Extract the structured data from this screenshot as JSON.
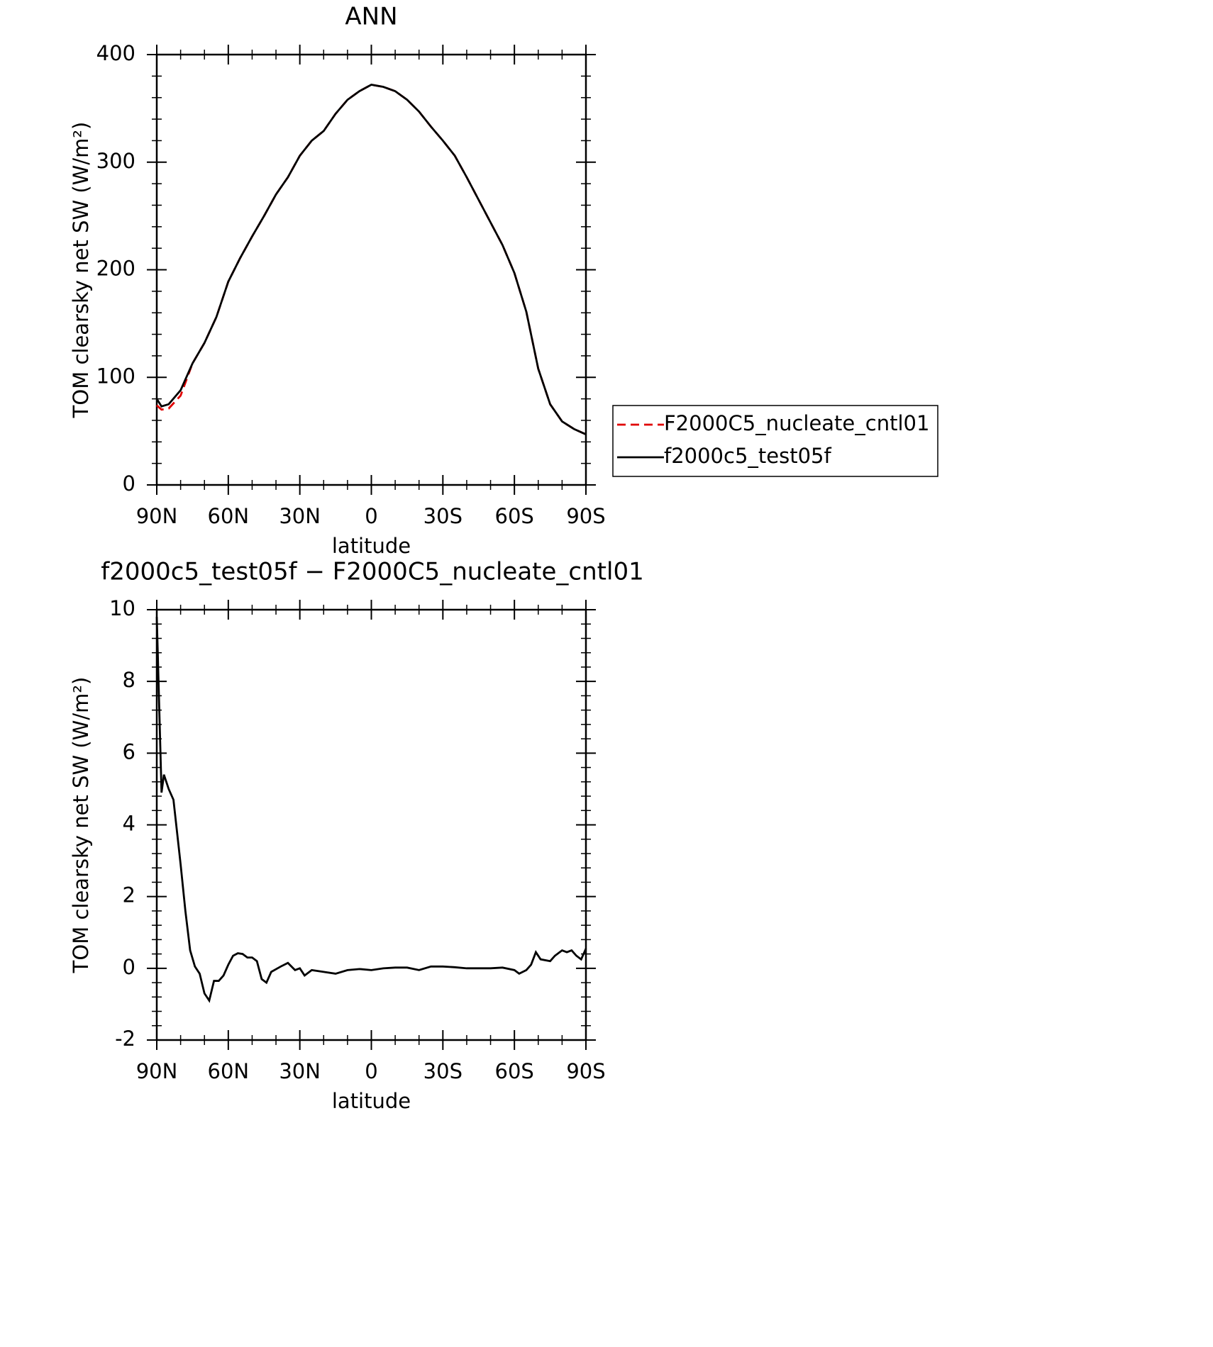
{
  "chart_data": [
    {
      "type": "line",
      "title": "ANN",
      "xlabel": "latitude",
      "ylabel": "TOM clearsky net SW (W/m²)",
      "x": [
        90,
        88,
        85,
        80,
        75,
        70,
        65,
        60,
        55,
        50,
        45,
        40,
        35,
        30,
        25,
        20,
        15,
        10,
        5,
        0,
        -5,
        -10,
        -15,
        -20,
        -25,
        -30,
        -35,
        -40,
        -45,
        -50,
        -55,
        -60,
        -65,
        -70,
        -75,
        -80,
        -85,
        -90
      ],
      "series": [
        {
          "name": "F2000C5_nucleate_cntl01",
          "color": "#e00000",
          "linestyle": "dashed",
          "values": [
            74,
            70,
            71,
            83,
            113,
            132,
            156,
            189,
            211,
            231,
            250,
            270,
            286,
            306,
            320,
            329,
            345,
            358,
            366,
            372,
            370,
            366,
            358,
            347,
            333,
            320,
            306,
            286,
            265,
            244,
            223,
            197,
            161,
            108,
            75,
            59,
            52,
            47
          ]
        },
        {
          "name": "f2000c5_test05f",
          "color": "#000000",
          "linestyle": "solid",
          "values": [
            80,
            73,
            75,
            88,
            113,
            132,
            156,
            189,
            211,
            231,
            250,
            270,
            286,
            306,
            320,
            329,
            345,
            358,
            366,
            372,
            370,
            366,
            358,
            347,
            333,
            320,
            306,
            286,
            265,
            244,
            223,
            197,
            161,
            108,
            75,
            59,
            52,
            47
          ]
        }
      ],
      "xlim": [
        90,
        -90
      ],
      "ylim": [
        0,
        400
      ],
      "xticks": [
        {
          "value": 90,
          "label": "90N"
        },
        {
          "value": 60,
          "label": "60N"
        },
        {
          "value": 30,
          "label": "30N"
        },
        0,
        {
          "value": -30,
          "label": "30S"
        },
        {
          "value": -60,
          "label": "60S"
        },
        {
          "value": -90,
          "label": "90S"
        }
      ],
      "yticks": [
        0,
        100,
        200,
        300,
        400
      ],
      "legend": "right"
    },
    {
      "type": "line",
      "title": "f2000c5_test05f − F2000C5_nucleate_cntl01",
      "xlabel": "latitude",
      "ylabel": "TOM clearsky net SW (W/m²)",
      "x": [
        90,
        88,
        87,
        85,
        83,
        80,
        78,
        76,
        74,
        72,
        70,
        68,
        66,
        64,
        62,
        60,
        58,
        56,
        54,
        52,
        50,
        48,
        46,
        44,
        42,
        38,
        35,
        32,
        30,
        28,
        25,
        20,
        15,
        10,
        5,
        0,
        -5,
        -10,
        -15,
        -20,
        -25,
        -30,
        -35,
        -40,
        -45,
        -50,
        -55,
        -60,
        -62,
        -65,
        -67,
        -69,
        -71,
        -75,
        -77,
        -80,
        -82,
        -84,
        -86,
        -88,
        -90
      ],
      "series": [
        {
          "color": "#000000",
          "linestyle": "solid",
          "values": [
            9.8,
            4.9,
            5.4,
            5.0,
            4.7,
            2.9,
            1.6,
            0.5,
            0.05,
            -0.15,
            -0.7,
            -0.9,
            -0.35,
            -0.35,
            -0.2,
            0.1,
            0.35,
            0.42,
            0.4,
            0.3,
            0.3,
            0.2,
            -0.3,
            -0.4,
            -0.1,
            0.05,
            0.15,
            -0.05,
            0.0,
            -0.2,
            -0.05,
            -0.1,
            -0.15,
            -0.05,
            -0.02,
            -0.05,
            0.0,
            0.02,
            0.02,
            -0.05,
            0.05,
            0.05,
            0.03,
            0.0,
            0.0,
            0.0,
            0.02,
            -0.05,
            -0.15,
            -0.05,
            0.1,
            0.45,
            0.25,
            0.2,
            0.35,
            0.5,
            0.45,
            0.5,
            0.35,
            0.25,
            0.55
          ]
        }
      ],
      "xlim": [
        90,
        -90
      ],
      "ylim": [
        -2,
        10
      ],
      "xticks": [
        {
          "value": 90,
          "label": "90N"
        },
        {
          "value": 60,
          "label": "60N"
        },
        {
          "value": 30,
          "label": "30N"
        },
        0,
        {
          "value": -30,
          "label": "30S"
        },
        {
          "value": -60,
          "label": "60S"
        },
        {
          "value": -90,
          "label": "90S"
        }
      ],
      "yticks": [
        -2,
        0,
        2,
        4,
        6,
        8,
        10
      ]
    }
  ]
}
